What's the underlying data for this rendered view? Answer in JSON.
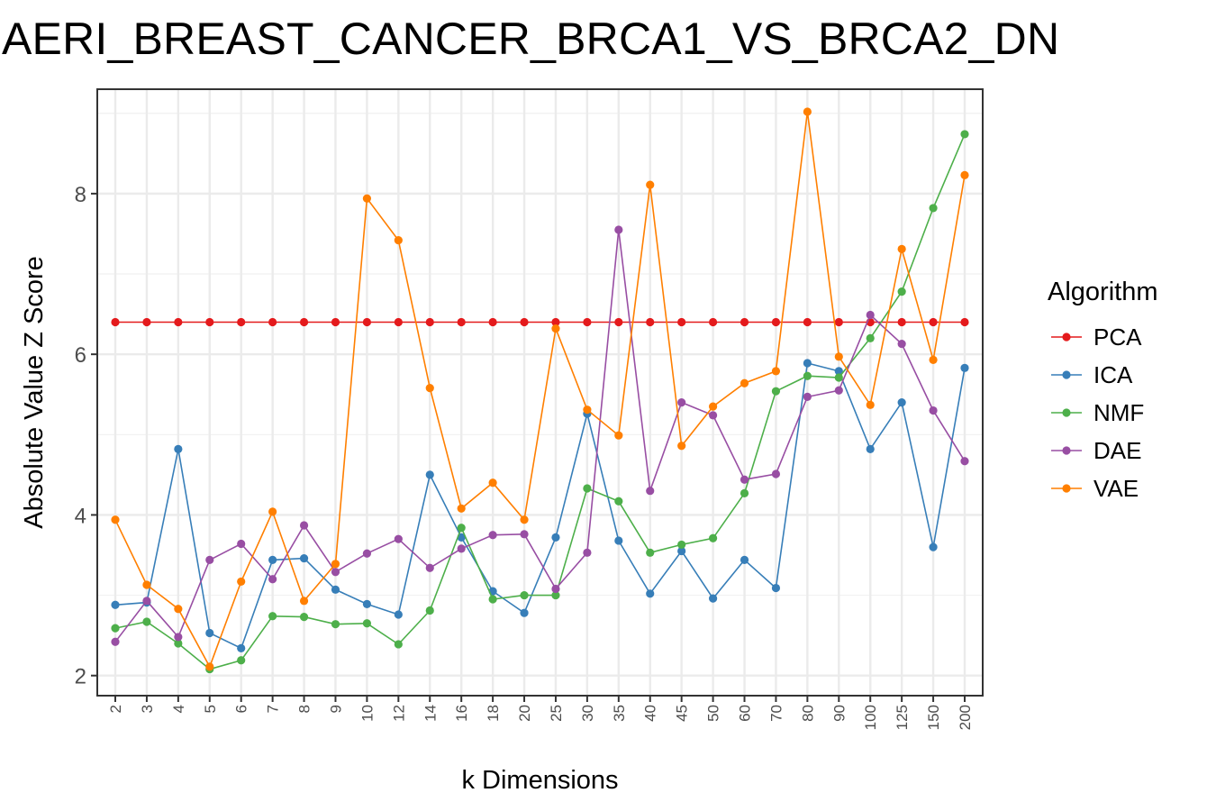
{
  "chart_data": {
    "type": "line",
    "title": "AERI_BREAST_CANCER_BRCA1_VS_BRCA2_DN",
    "xlabel": "k Dimensions",
    "ylabel": "Absolute Value Z Score",
    "categories": [
      "2",
      "3",
      "4",
      "5",
      "6",
      "7",
      "8",
      "9",
      "10",
      "12",
      "14",
      "16",
      "18",
      "20",
      "25",
      "30",
      "35",
      "40",
      "45",
      "50",
      "60",
      "70",
      "80",
      "90",
      "100",
      "125",
      "150",
      "200"
    ],
    "ylim": [
      1.75,
      9.3
    ],
    "yticks": [
      2,
      4,
      6,
      8
    ],
    "grid": true,
    "legend": {
      "title": "Algorithm",
      "position": "right"
    },
    "series": [
      {
        "name": "PCA",
        "color": "#e41a1c",
        "values": [
          6.4,
          6.4,
          6.4,
          6.4,
          6.4,
          6.4,
          6.4,
          6.4,
          6.4,
          6.4,
          6.4,
          6.4,
          6.4,
          6.4,
          6.4,
          6.4,
          6.4,
          6.4,
          6.4,
          6.4,
          6.4,
          6.4,
          6.4,
          6.4,
          6.4,
          6.4,
          6.4,
          6.4
        ]
      },
      {
        "name": "ICA",
        "color": "#377eb8",
        "values": [
          2.88,
          2.91,
          4.82,
          2.53,
          2.34,
          3.44,
          3.46,
          3.07,
          2.89,
          2.76,
          4.5,
          3.72,
          3.05,
          2.78,
          3.72,
          5.26,
          3.68,
          3.02,
          3.55,
          2.96,
          3.44,
          3.09,
          5.89,
          5.79,
          4.82,
          5.4,
          3.6,
          5.83
        ]
      },
      {
        "name": "NMF",
        "color": "#4daf4a",
        "values": [
          2.59,
          2.67,
          2.4,
          2.08,
          2.19,
          2.74,
          2.73,
          2.64,
          2.65,
          2.39,
          2.81,
          3.84,
          2.95,
          3.0,
          3.0,
          4.33,
          4.17,
          3.53,
          3.63,
          3.71,
          4.27,
          5.54,
          5.73,
          5.71,
          6.2,
          6.78,
          7.82,
          8.74
        ]
      },
      {
        "name": "DAE",
        "color": "#984ea3",
        "values": [
          2.42,
          2.93,
          2.48,
          3.44,
          3.64,
          3.2,
          3.87,
          3.29,
          3.52,
          3.7,
          3.34,
          3.58,
          3.75,
          3.76,
          3.08,
          3.53,
          7.55,
          4.3,
          5.4,
          5.24,
          4.44,
          4.51,
          5.47,
          5.55,
          6.49,
          6.13,
          5.3,
          4.67
        ]
      },
      {
        "name": "VAE",
        "color": "#ff7f00",
        "values": [
          3.94,
          3.13,
          2.83,
          2.11,
          3.17,
          4.04,
          2.93,
          3.39,
          7.94,
          7.42,
          5.58,
          4.08,
          4.4,
          3.94,
          6.32,
          5.31,
          4.99,
          8.11,
          4.86,
          5.35,
          5.64,
          5.79,
          9.02,
          5.97,
          5.37,
          7.31,
          5.93,
          8.23
        ]
      }
    ]
  }
}
